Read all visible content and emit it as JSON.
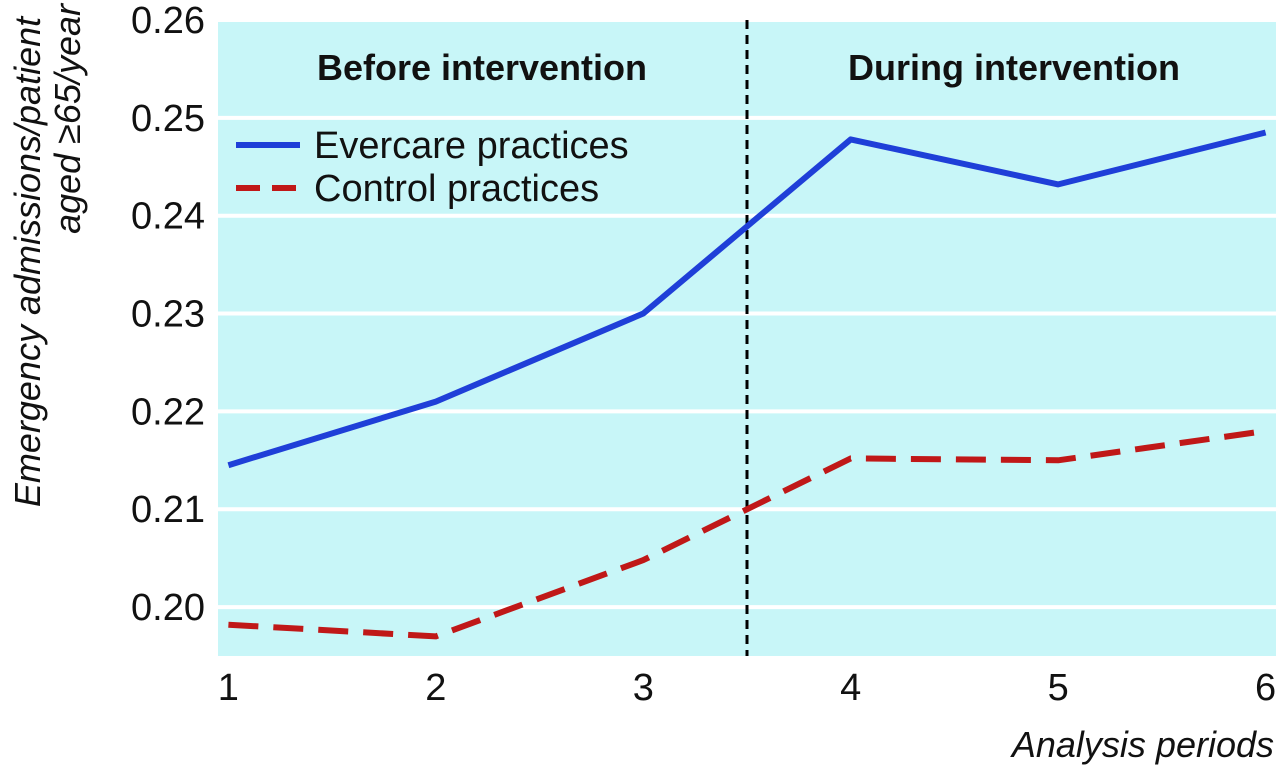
{
  "chart_data": {
    "type": "line",
    "title": "",
    "xlabel": "Analysis periods",
    "ylabel_lines": [
      "Emergency admissions/patient",
      "aged ≥65/year"
    ],
    "x": [
      1,
      2,
      3,
      4,
      5,
      6
    ],
    "xlim": [
      0.95,
      6.05
    ],
    "ylim": [
      0.195,
      0.26
    ],
    "y_ticks": [
      0.2,
      0.21,
      0.22,
      0.23,
      0.24,
      0.25,
      0.26
    ],
    "y_tick_labels": [
      "0.20",
      "0.21",
      "0.22",
      "0.23",
      "0.24",
      "0.25",
      "0.26"
    ],
    "x_tick_labels": [
      "1",
      "2",
      "3",
      "4",
      "5",
      "6"
    ],
    "grid": "horizontal",
    "legend_position": "top-left",
    "series": [
      {
        "name": "Evercare practices",
        "values": [
          0.2145,
          0.221,
          0.23,
          0.2478,
          0.2432,
          0.2485
        ],
        "color": "#1f3fd8",
        "style": "solid"
      },
      {
        "name": "Control practices",
        "values": [
          0.1982,
          0.197,
          0.2048,
          0.2152,
          0.215,
          0.218
        ],
        "color": "#c01818",
        "style": "dashed"
      }
    ],
    "divider_x": 3.5,
    "annotations": [
      "Before intervention",
      "During intervention"
    ],
    "colors": {
      "plot_background": "#c8f6f8",
      "grid": "#ffffff",
      "divider": "#000000"
    }
  }
}
